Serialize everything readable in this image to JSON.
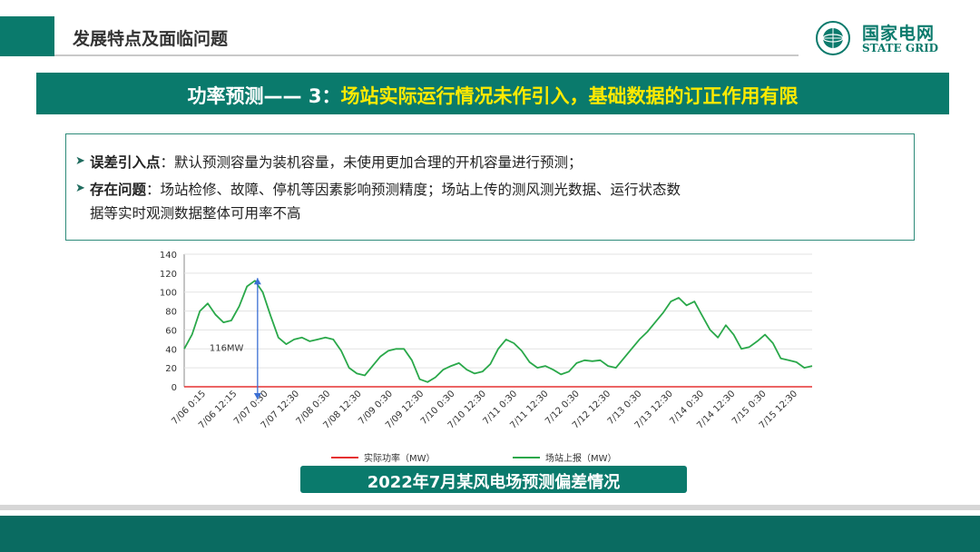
{
  "header": {
    "title": "发展特点及面临问题"
  },
  "logo": {
    "cn": "国家电网",
    "en": "STATE GRID"
  },
  "banner": {
    "lead": "功率预测—— 3：",
    "highlight": "场站实际运行情况未作引入，基础数据的订正作用有限"
  },
  "bullets": [
    {
      "label": "误差引入点",
      "text": "：默认预测容量为装机容量，未使用更加合理的开机容量进行预测；"
    },
    {
      "label": "存在问题",
      "text": "：场站检修、故障、停机等因素影响预测精度；场站上传的测风测光数据、运行状态数",
      "text2": "据等实时观测数据整体可用率不高"
    }
  ],
  "chart_title": "2022年7月某风电场预测偏差情况",
  "colors": {
    "primary": "#0a7a6c",
    "highlight": "#ffea00",
    "actual": "#e53030",
    "reported": "#2aa84a",
    "annotation": "#3b6fd4"
  },
  "chart_data": {
    "type": "line",
    "ylim": [
      0,
      140
    ],
    "yticks": [
      0,
      20,
      40,
      60,
      80,
      100,
      120,
      140
    ],
    "xticks": [
      "7/06 0:15",
      "7/06 12:15",
      "7/07 0:30",
      "7/07 12:30",
      "7/08 0:30",
      "7/08 12:30",
      "7/09 0:30",
      "7/09 12:30",
      "7/10 0:30",
      "7/10 12:30",
      "7/11 0:30",
      "7/11 12:30",
      "7/12 0:30",
      "7/12 12:30",
      "7/13 0:30",
      "7/13 12:30",
      "7/14 0:30",
      "7/14 12:30",
      "7/15 0:30",
      "7/15 12:30"
    ],
    "legend": [
      "实际功率（MW）",
      "场站上报（MW）"
    ],
    "annotation": "116MW",
    "series": [
      {
        "name": "实际功率（MW）",
        "values": [
          0,
          0,
          0,
          0,
          0,
          0,
          0,
          0,
          0,
          0,
          0,
          0,
          0,
          0,
          0,
          0,
          0,
          0,
          0,
          0,
          0,
          0,
          0,
          0,
          0,
          0,
          0,
          0,
          0,
          0,
          0,
          0,
          0,
          0,
          0,
          0,
          0,
          0,
          0,
          0,
          0,
          0,
          0,
          0,
          0,
          0,
          0,
          0,
          0,
          0,
          0,
          0,
          0,
          0,
          0,
          0,
          0,
          0,
          0,
          0,
          0,
          0,
          0,
          0,
          0,
          0,
          0,
          0,
          0,
          0,
          0,
          0,
          0,
          0,
          0,
          0,
          0,
          0,
          0,
          0,
          0
        ]
      },
      {
        "name": "场站上报（MW）",
        "values": [
          40,
          55,
          80,
          88,
          76,
          68,
          70,
          85,
          106,
          112,
          100,
          75,
          52,
          45,
          50,
          52,
          48,
          50,
          52,
          50,
          38,
          20,
          14,
          12,
          22,
          32,
          38,
          40,
          40,
          28,
          8,
          5,
          10,
          18,
          22,
          25,
          18,
          14,
          16,
          24,
          40,
          50,
          46,
          38,
          26,
          20,
          22,
          18,
          13,
          16,
          25,
          28,
          27,
          28,
          22,
          20,
          30,
          40,
          50,
          58,
          68,
          78,
          90,
          94,
          86,
          90,
          75,
          60,
          52,
          65,
          55,
          40,
          42,
          48,
          55,
          46,
          30,
          28,
          26,
          20,
          22
        ]
      }
    ]
  }
}
